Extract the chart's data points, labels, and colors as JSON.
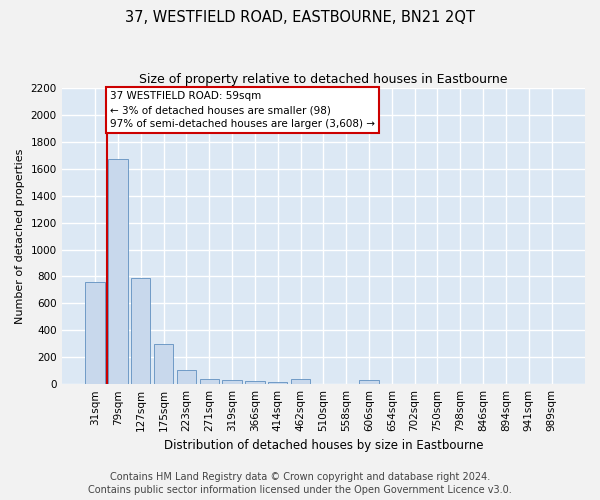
{
  "title": "37, WESTFIELD ROAD, EASTBOURNE, BN21 2QT",
  "subtitle": "Size of property relative to detached houses in Eastbourne",
  "xlabel": "Distribution of detached houses by size in Eastbourne",
  "ylabel": "Number of detached properties",
  "categories": [
    "31sqm",
    "79sqm",
    "127sqm",
    "175sqm",
    "223sqm",
    "271sqm",
    "319sqm",
    "366sqm",
    "414sqm",
    "462sqm",
    "510sqm",
    "558sqm",
    "606sqm",
    "654sqm",
    "702sqm",
    "750sqm",
    "798sqm",
    "846sqm",
    "894sqm",
    "941sqm",
    "989sqm"
  ],
  "values": [
    760,
    1670,
    790,
    295,
    105,
    38,
    28,
    20,
    15,
    40,
    0,
    0,
    30,
    0,
    0,
    0,
    0,
    0,
    0,
    0,
    0
  ],
  "bar_color": "#c8d8ec",
  "bar_edge_color": "#6090c0",
  "annotation_text": "37 WESTFIELD ROAD: 59sqm\n← 3% of detached houses are smaller (98)\n97% of semi-detached houses are larger (3,608) →",
  "annotation_box_facecolor": "#ffffff",
  "annotation_box_edgecolor": "#cc0000",
  "vline_color": "#cc0000",
  "vline_x": 0.5,
  "ylim_max": 2200,
  "yticks": [
    0,
    200,
    400,
    600,
    800,
    1000,
    1200,
    1400,
    1600,
    1800,
    2000,
    2200
  ],
  "plot_bg": "#dce8f4",
  "fig_bg": "#f2f2f2",
  "grid_color": "#ffffff",
  "title_fontsize": 10.5,
  "subtitle_fontsize": 9,
  "ylabel_fontsize": 8,
  "xlabel_fontsize": 8.5,
  "tick_fontsize": 7.5,
  "annotation_fontsize": 7.5,
  "footer_text": "Contains HM Land Registry data © Crown copyright and database right 2024.\nContains public sector information licensed under the Open Government Licence v3.0.",
  "footer_fontsize": 7
}
